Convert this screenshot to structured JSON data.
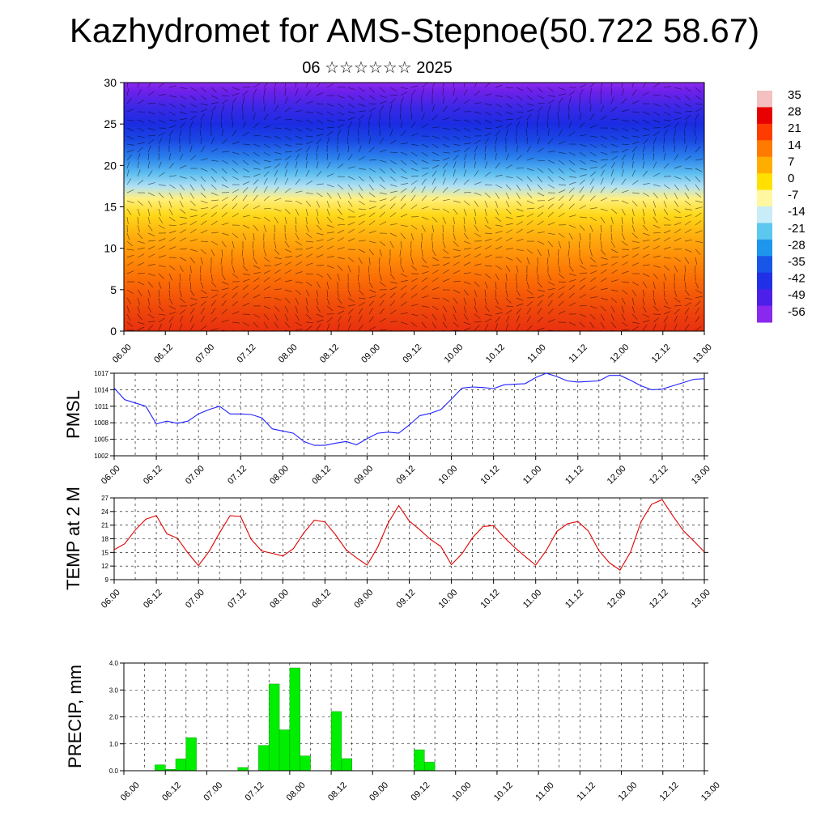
{
  "title": "Kazhydromet for AMS-Stepnoe(50.722 58.67)",
  "subtitle": "06 ☆☆☆☆☆☆ 2025",
  "time_labels": [
    "06.00",
    "06.12",
    "07.00",
    "07.12",
    "08.00",
    "08.12",
    "09.00",
    "09.12",
    "10.00",
    "10.12",
    "11.00",
    "11.12",
    "12.00",
    "12.12",
    "13.00"
  ],
  "colors": {
    "pmsl_line": "#2020ff",
    "temp_line": "#e00000",
    "precip_bar": "#00ee00",
    "precip_edge": "#008800"
  },
  "chart_data": [
    {
      "type": "heatmap",
      "title": "",
      "ylabel": "",
      "ylim": [
        0,
        30
      ],
      "y_ticks": [
        0,
        5,
        10,
        15,
        20,
        25,
        30
      ],
      "x_tick_labels": [
        "06.00",
        "06.12",
        "07.00",
        "07.12",
        "08.00",
        "08.12",
        "09.00",
        "09.12",
        "10.00",
        "10.12",
        "11.00",
        "11.12",
        "12.00",
        "12.12",
        "13.00"
      ],
      "colorbar_labels": [
        "35",
        "28",
        "21",
        "14",
        "7",
        "0",
        "-7",
        "-14",
        "-21",
        "-28",
        "-35",
        "-42",
        "-49",
        "-56"
      ],
      "colorbar_colors": [
        "#f4c0c0",
        "#e80000",
        "#ff3c00",
        "#ff7a00",
        "#ffae00",
        "#ffe000",
        "#fff8a0",
        "#c8ecf8",
        "#5cc8f0",
        "#1e96ee",
        "#1856e8",
        "#2030e6",
        "#4c20e8",
        "#8a28ee"
      ],
      "rows": [
        {
          "altitude": 0,
          "color": "#e83010"
        },
        {
          "altitude": 3,
          "color": "#f04a0a"
        },
        {
          "altitude": 6,
          "color": "#fa6a06"
        },
        {
          "altitude": 9,
          "color": "#ff8e08"
        },
        {
          "altitude": 12,
          "color": "#ffb610"
        },
        {
          "altitude": 14,
          "color": "#ffd818"
        },
        {
          "altitude": 16,
          "color": "#fff080"
        },
        {
          "altitude": 17.5,
          "color": "#b0e0f4"
        },
        {
          "altitude": 19,
          "color": "#60c0f0"
        },
        {
          "altitude": 21,
          "color": "#2a80ec"
        },
        {
          "altitude": 23,
          "color": "#1a48e4"
        },
        {
          "altitude": 25,
          "color": "#1a2ce2"
        },
        {
          "altitude": 27,
          "color": "#3a28e6"
        },
        {
          "altitude": 29,
          "color": "#7020ea"
        },
        {
          "altitude": 30,
          "color": "#8a2cee"
        }
      ]
    },
    {
      "type": "line",
      "title": "",
      "ylabel": "PMSL",
      "ylim": [
        1002,
        1017
      ],
      "y_ticks": [
        1002,
        1005,
        1008,
        1011,
        1014,
        1017
      ],
      "x_tick_labels": [
        "06.00",
        "06.12",
        "07.00",
        "07.12",
        "08.00",
        "08.12",
        "09.00",
        "09.12",
        "10.00",
        "10.12",
        "11.00",
        "11.12",
        "12.00",
        "12.12",
        "13.00"
      ],
      "x": [
        0,
        3,
        6,
        9,
        12,
        15,
        18,
        21,
        24,
        27,
        30,
        33,
        36,
        39,
        42,
        45,
        48,
        51,
        54,
        57,
        60,
        63,
        66,
        69,
        72,
        75,
        78,
        81,
        84,
        87,
        90,
        93,
        96,
        99,
        102,
        105,
        108,
        111,
        114,
        117,
        120,
        123,
        126,
        129,
        132,
        135,
        138,
        141,
        144,
        147,
        150,
        153,
        156,
        159,
        162,
        165,
        168
      ],
      "series": [
        {
          "name": "",
          "values": [
            1014.3,
            1012.2,
            1011.6,
            1011.0,
            1007.8,
            1008.3,
            1007.9,
            1008.3,
            1009.6,
            1010.4,
            1011.0,
            1009.6,
            1009.6,
            1009.5,
            1008.9,
            1006.9,
            1006.5,
            1006.1,
            1004.6,
            1003.9,
            1003.9,
            1004.3,
            1004.6,
            1004.0,
            1005.1,
            1006.1,
            1006.3,
            1006.1,
            1007.6,
            1009.3,
            1009.7,
            1010.4,
            1012.3,
            1014.3,
            1014.5,
            1014.4,
            1014.2,
            1014.9,
            1015.0,
            1015.1,
            1016.2,
            1017.0,
            1016.4,
            1015.6,
            1015.4,
            1015.5,
            1015.6,
            1016.6,
            1016.6,
            1015.7,
            1014.7,
            1014.0,
            1014.1,
            1014.7,
            1015.3,
            1015.9,
            1016.0
          ]
        }
      ]
    },
    {
      "type": "line",
      "title": "",
      "ylabel": "TEMP at 2 M",
      "ylim": [
        9,
        27
      ],
      "y_ticks": [
        9,
        12,
        15,
        18,
        21,
        24,
        27
      ],
      "x_tick_labels": [
        "06.00",
        "06.12",
        "07.00",
        "07.12",
        "08.00",
        "08.12",
        "09.00",
        "09.12",
        "10.00",
        "10.12",
        "11.00",
        "11.12",
        "12.00",
        "12.12",
        "13.00"
      ],
      "x": [
        0,
        3,
        6,
        9,
        12,
        15,
        18,
        21,
        24,
        27,
        30,
        33,
        36,
        39,
        42,
        45,
        48,
        51,
        54,
        57,
        60,
        63,
        66,
        69,
        72,
        75,
        78,
        81,
        84,
        87,
        90,
        93,
        96,
        99,
        102,
        105,
        108,
        111,
        114,
        117,
        120,
        123,
        126,
        129,
        132,
        135,
        138,
        141,
        144,
        147,
        150,
        153,
        156,
        159,
        162,
        165,
        168
      ],
      "series": [
        {
          "name": "",
          "values": [
            15.6,
            16.9,
            19.9,
            22.3,
            23.1,
            19.1,
            18.1,
            14.9,
            12.1,
            15.2,
            19.3,
            23.1,
            22.9,
            17.9,
            15.3,
            14.8,
            14.2,
            15.8,
            19.3,
            22.1,
            21.7,
            18.9,
            15.6,
            13.8,
            12.2,
            16.1,
            21.5,
            25.3,
            21.9,
            20.0,
            17.9,
            16.3,
            12.3,
            14.7,
            18.2,
            20.7,
            20.9,
            18.3,
            16.1,
            14.1,
            12.2,
            15.4,
            19.6,
            21.3,
            21.8,
            19.7,
            15.4,
            12.7,
            11.1,
            15.1,
            21.8,
            25.6,
            26.6,
            23.1,
            19.8,
            17.5,
            15.1
          ]
        }
      ]
    },
    {
      "type": "bar",
      "title": "",
      "ylabel": "PRECIP, mm",
      "ylim": [
        0,
        4
      ],
      "y_ticks": [
        "0.0",
        "1.0",
        "2.0",
        "3.0",
        "4.0"
      ],
      "x_tick_labels": [
        "06.00",
        "06.12",
        "07.00",
        "07.12",
        "08.00",
        "08.12",
        "09.00",
        "09.12",
        "10.00",
        "10.12",
        "11.00",
        "11.12",
        "12.00",
        "12.12",
        "13.00"
      ],
      "bar_width_hours": 3,
      "x_start": [
        9,
        12,
        15,
        18,
        33,
        39,
        42,
        45,
        48,
        51,
        60,
        63,
        84,
        87
      ],
      "values": [
        0.22,
        0.05,
        0.44,
        1.23,
        0.12,
        0.94,
        3.22,
        1.52,
        3.82,
        0.55,
        2.2,
        0.45,
        0.78,
        0.32
      ]
    }
  ]
}
